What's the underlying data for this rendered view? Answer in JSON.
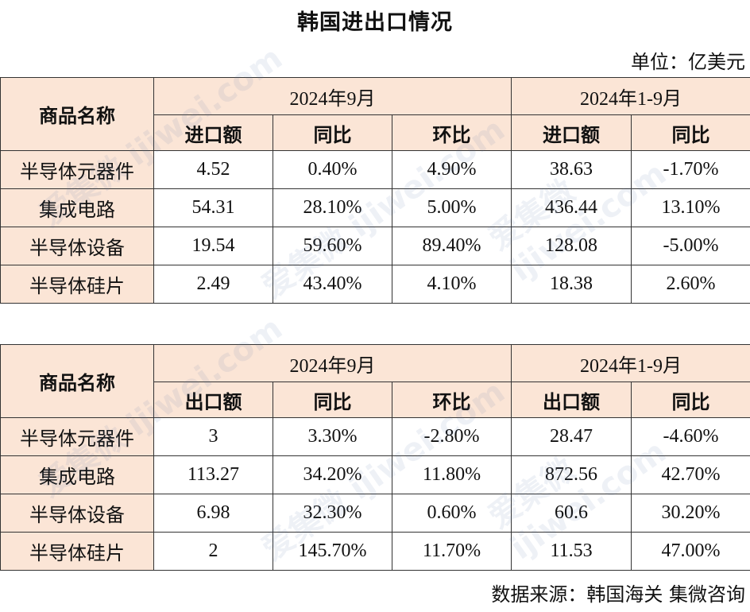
{
  "title": "韩国进出口情况",
  "unit_label": "单位：亿美元",
  "source_label": "数据来源：韩国海关 集微咨询",
  "import_table": {
    "name_header": "商品名称",
    "group1": "2024年9月",
    "group2": "2024年1-9月",
    "sub1": "进口额",
    "sub2": "同比",
    "sub3": "环比",
    "sub4": "进口额",
    "sub5": "同比",
    "rows": [
      {
        "name": "半导体元器件",
        "v1": "4.52",
        "v2": "0.40%",
        "v3": "4.90%",
        "v4": "38.63",
        "v5": "-1.70%"
      },
      {
        "name": "集成电路",
        "v1": "54.31",
        "v2": "28.10%",
        "v3": "5.00%",
        "v4": "436.44",
        "v5": "13.10%"
      },
      {
        "name": "半导体设备",
        "v1": "19.54",
        "v2": "59.60%",
        "v3": "89.40%",
        "v4": "128.08",
        "v5": "-5.00%"
      },
      {
        "name": "半导体硅片",
        "v1": "2.49",
        "v2": "43.40%",
        "v3": "4.10%",
        "v4": "18.38",
        "v5": "2.60%"
      }
    ]
  },
  "export_table": {
    "name_header": "商品名称",
    "group1": "2024年9月",
    "group2": "2024年1-9月",
    "sub1": "出口额",
    "sub2": "同比",
    "sub3": "环比",
    "sub4": "出口额",
    "sub5": "同比",
    "rows": [
      {
        "name": "半导体元器件",
        "v1": "3",
        "v2": "3.30%",
        "v3": "-2.80%",
        "v4": "28.47",
        "v5": "-4.60%"
      },
      {
        "name": "集成电路",
        "v1": "113.27",
        "v2": "34.20%",
        "v3": "11.80%",
        "v4": "872.56",
        "v5": "42.70%"
      },
      {
        "name": "半导体设备",
        "v1": "6.98",
        "v2": "32.30%",
        "v3": "0.60%",
        "v4": "60.6",
        "v5": "30.20%"
      },
      {
        "name": "半导体硅片",
        "v1": "2",
        "v2": "145.70%",
        "v3": "11.70%",
        "v4": "11.53",
        "v5": "47.00%"
      }
    ]
  },
  "watermark": "爱集微 ijiwei.com"
}
